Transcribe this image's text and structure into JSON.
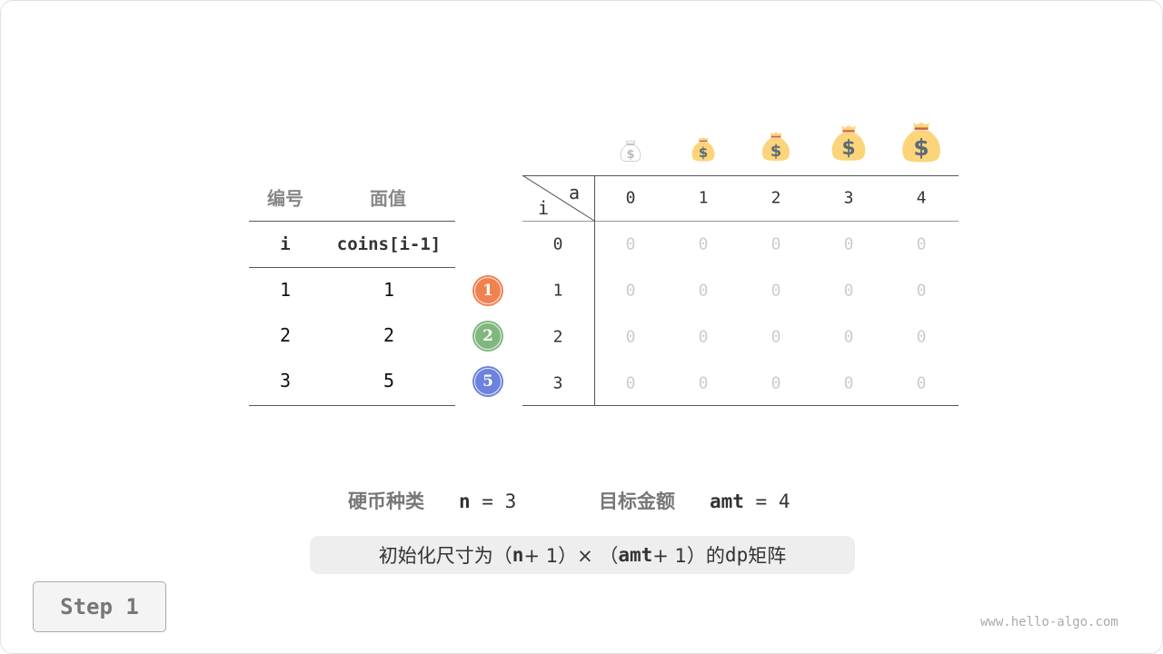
{
  "left_table": {
    "headers": [
      "编号",
      "面值"
    ],
    "subheaders": [
      "i",
      "coins[i-1]"
    ],
    "rows": [
      {
        "i": "1",
        "coin": "1"
      },
      {
        "i": "2",
        "coin": "2"
      },
      {
        "i": "3",
        "coin": "5"
      }
    ]
  },
  "coins": [
    {
      "label": "1",
      "color": "#f0824f"
    },
    {
      "label": "2",
      "color": "#7fb77e"
    },
    {
      "label": "5",
      "color": "#6b83dc"
    }
  ],
  "dp_table": {
    "corner_col": "a",
    "corner_row": "i",
    "columns": [
      "0",
      "1",
      "2",
      "3",
      "4"
    ],
    "row_labels": [
      "0",
      "1",
      "2",
      "3"
    ],
    "cells": [
      [
        "0",
        "0",
        "0",
        "0",
        "0"
      ],
      [
        "0",
        "0",
        "0",
        "0",
        "0"
      ],
      [
        "0",
        "0",
        "0",
        "0",
        "0"
      ],
      [
        "0",
        "0",
        "0",
        "0",
        "0"
      ]
    ],
    "column_icons": [
      "money-bag-outline-icon",
      "money-bag-icon",
      "money-bag-icon",
      "money-bag-icon",
      "money-bag-icon"
    ]
  },
  "info": {
    "n_label": "硬币种类",
    "n_var": "n",
    "n_eq": "=",
    "n_value": "3",
    "amt_label": "目标金额",
    "amt_var": "amt",
    "amt_eq": "=",
    "amt_value": "4"
  },
  "note": {
    "prefix": "初始化尺寸为（",
    "n": "n",
    "plus1": " + 1）× （",
    "amt": "amt",
    "plus2": " + 1）的 ",
    "dp": "dp",
    "suffix": " 矩阵"
  },
  "step_label": "Step 1",
  "watermark": "www.hello-algo.com",
  "colors": {
    "bag": "#fcd57a",
    "dollar": "#5c6b78",
    "band": "#c9614a"
  }
}
